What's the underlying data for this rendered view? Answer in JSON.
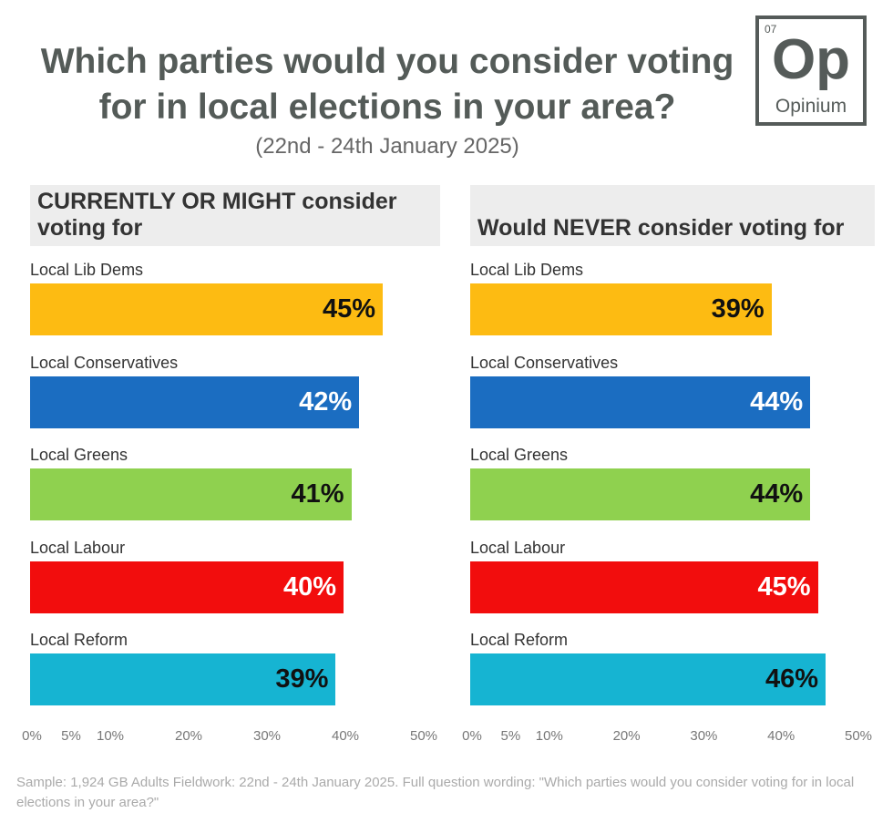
{
  "title_lines": [
    "Which parties would you consider voting",
    "for in local elections in your area?"
  ],
  "subtitle": "(22nd - 24th January 2025)",
  "logo": {
    "number": "07",
    "symbol": "Op",
    "name": "Opinium"
  },
  "footer": "Sample: 1,924 GB Adults Fieldwork: 22nd - 24th January 2025. Full question wording: \"Which parties would you consider voting for in local elections in your area?\"",
  "chart_data": [
    {
      "type": "bar",
      "orientation": "horizontal",
      "title": "CURRENTLY OR MIGHT consider voting for",
      "categories": [
        "Local Lib Dems",
        "Local Conservatives",
        "Local Greens",
        "Local Labour",
        "Local Reform"
      ],
      "values": [
        45,
        42,
        41,
        40,
        39
      ],
      "value_labels": [
        "45%",
        "42%",
        "41%",
        "40%",
        "39%"
      ],
      "xlim": [
        0,
        50
      ],
      "x_ticks": [
        0,
        5,
        10,
        20,
        30,
        40,
        50
      ],
      "x_tick_labels": [
        "0%",
        "5%",
        "10%",
        "20%",
        "30%",
        "40%",
        "50%"
      ],
      "grid": false
    },
    {
      "type": "bar",
      "orientation": "horizontal",
      "title": "Would NEVER consider voting for",
      "categories": [
        "Local Lib Dems",
        "Local Conservatives",
        "Local Greens",
        "Local Labour",
        "Local Reform"
      ],
      "values": [
        39,
        44,
        44,
        45,
        46
      ],
      "value_labels": [
        "39%",
        "44%",
        "44%",
        "45%",
        "46%"
      ],
      "xlim": [
        0,
        50
      ],
      "x_ticks": [
        0,
        5,
        10,
        20,
        30,
        40,
        50
      ],
      "x_tick_labels": [
        "0%",
        "5%",
        "10%",
        "20%",
        "30%",
        "40%",
        "50%"
      ],
      "grid": false
    }
  ],
  "colors": {
    "Local Lib Dems": "#FDBB12",
    "Local Conservatives": "#1B6DC1",
    "Local Greens": "#8FD14F",
    "Local Labour": "#F20D0D",
    "Local Reform": "#16B4D2"
  },
  "label_colors": {
    "Local Lib Dems": "#111111",
    "Local Conservatives": "#ffffff",
    "Local Greens": "#111111",
    "Local Labour": "#ffffff",
    "Local Reform": "#111111"
  }
}
